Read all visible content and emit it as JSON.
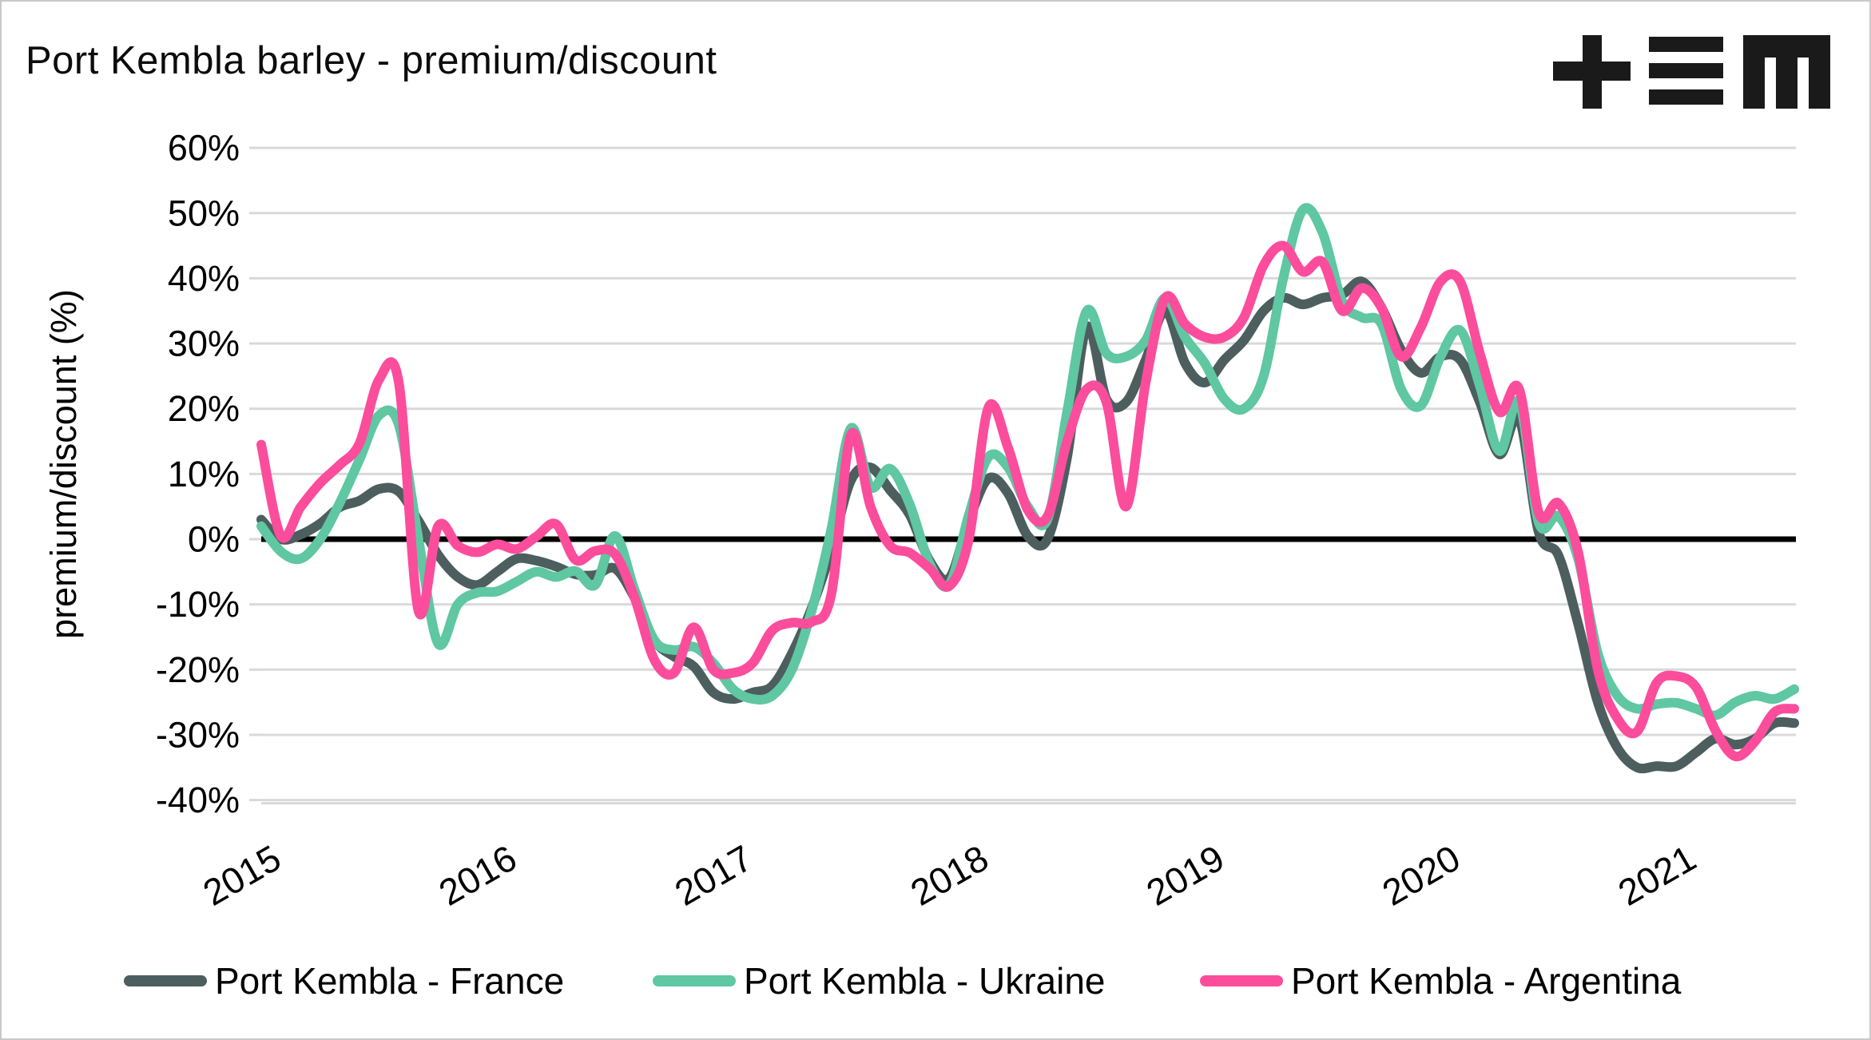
{
  "title": "Port Kembla barley - premium/discount",
  "logo": {
    "name": "tem-logo",
    "color": "#1a1a1a"
  },
  "y_axis": {
    "label": "premium/discount (%)",
    "tick_labels": [
      "60%",
      "50%",
      "40%",
      "30%",
      "20%",
      "10%",
      "0%",
      "-10%",
      "-20%",
      "-30%",
      "-40%"
    ],
    "max": 60,
    "min": -40,
    "step": 10
  },
  "x_axis": {
    "tick_labels": [
      "2015",
      "2016",
      "2017",
      "2018",
      "2019",
      "2020",
      "2021"
    ]
  },
  "legend": [
    {
      "label": "Port Kembla - France",
      "color": "#4d5e5f"
    },
    {
      "label": "Port Kembla - Ukraine",
      "color": "#5fc7a2"
    },
    {
      "label": "Port Kembla - Argentina",
      "color": "#fb4d9c"
    }
  ],
  "style": {
    "gridline_color": "#d9d9d9",
    "zero_line_color": "#000000",
    "background": "#ffffff",
    "line_width": 12,
    "text_color": "#000000"
  },
  "chart_data": {
    "type": "line",
    "title": "Port Kembla barley - premium/discount",
    "xlabel": "",
    "ylabel": "premium/discount (%)",
    "ylim": [
      -40,
      60
    ],
    "grid": true,
    "zero_line": true,
    "legend_position": "bottom",
    "smooth": true,
    "categories": [
      "2015-01",
      "2015-02",
      "2015-03",
      "2015-04",
      "2015-05",
      "2015-06",
      "2015-07",
      "2015-08",
      "2015-09",
      "2015-10",
      "2015-11",
      "2015-12",
      "2016-01",
      "2016-02",
      "2016-03",
      "2016-04",
      "2016-05",
      "2016-06",
      "2016-07",
      "2016-08",
      "2016-09",
      "2016-10",
      "2016-11",
      "2016-12",
      "2017-01",
      "2017-02",
      "2017-03",
      "2017-04",
      "2017-05",
      "2017-06",
      "2017-07",
      "2017-08",
      "2017-09",
      "2017-10",
      "2017-11",
      "2017-12",
      "2018-01",
      "2018-02",
      "2018-03",
      "2018-04",
      "2018-05",
      "2018-06",
      "2018-07",
      "2018-08",
      "2018-09",
      "2018-10",
      "2018-11",
      "2018-12",
      "2019-01",
      "2019-02",
      "2019-03",
      "2019-04",
      "2019-05",
      "2019-06",
      "2019-07",
      "2019-08",
      "2019-09",
      "2019-10",
      "2019-11",
      "2019-12",
      "2020-01",
      "2020-02",
      "2020-03",
      "2020-04",
      "2020-05",
      "2020-06",
      "2020-07",
      "2020-08",
      "2020-09",
      "2020-10",
      "2020-11",
      "2020-12",
      "2021-01",
      "2021-02",
      "2021-03",
      "2021-04",
      "2021-05",
      "2021-06",
      "2021-07"
    ],
    "series": [
      {
        "name": "Port Kembla - France",
        "color": "#4d5e5f",
        "values": [
          3,
          0,
          0.7,
          2.4,
          4.9,
          5.9,
          7.7,
          7.3,
          2.8,
          -2.4,
          -5.8,
          -7,
          -5,
          -3,
          -3.3,
          -4.2,
          -5.4,
          -5.5,
          -4.5,
          -9,
          -15.5,
          -18,
          -19.5,
          -23.5,
          -24.5,
          -23.5,
          -22.5,
          -17.5,
          -10.6,
          -1.7,
          9,
          11,
          7.5,
          3.7,
          -3.3,
          -6,
          2.8,
          9.3,
          7,
          0.5,
          0,
          12.5,
          32.5,
          21.5,
          21,
          27.5,
          35,
          27,
          24,
          27.5,
          30.5,
          35,
          37,
          36,
          37,
          37.5,
          39.5,
          35.5,
          29,
          25.5,
          28,
          27.5,
          21,
          13,
          18.5,
          1,
          -2.5,
          -13,
          -25,
          -32,
          -35,
          -34.8,
          -34.8,
          -32.7,
          -30.6,
          -31.5,
          -30.6,
          -28.2,
          -28.2
        ]
      },
      {
        "name": "Port Kembla - Ukraine",
        "color": "#5fc7a2",
        "values": [
          2,
          -1.9,
          -3,
          0,
          5.6,
          12.2,
          19,
          17.5,
          0,
          -16,
          -10,
          -8.2,
          -8,
          -6.5,
          -5,
          -5.8,
          -4.9,
          -7,
          0.5,
          -7.8,
          -15.5,
          -17,
          -16.5,
          -19,
          -23,
          -24.5,
          -24,
          -20,
          -11,
          1.5,
          17,
          8,
          10.8,
          5.3,
          -3.7,
          -7,
          3.7,
          12.6,
          11,
          5,
          3,
          19.5,
          35,
          28.5,
          28,
          30.5,
          37,
          31,
          27,
          21.5,
          20,
          25,
          40,
          50.5,
          47,
          36.5,
          34,
          33,
          23,
          20.5,
          28,
          32,
          23.5,
          13.5,
          21,
          2.5,
          3.5,
          -3,
          -17.5,
          -24,
          -26,
          -25.3,
          -25.1,
          -26,
          -27,
          -25,
          -24,
          -24.5,
          -23
        ]
      },
      {
        "name": "Port Kembla - Argentina",
        "color": "#fb4d9c",
        "values": [
          14.5,
          0.5,
          4.9,
          8.6,
          11.4,
          14.7,
          24.5,
          24,
          -11,
          2,
          -1,
          -2,
          -0.8,
          -1.5,
          0.4,
          2.3,
          -3.2,
          -1.8,
          -2.3,
          -9,
          -18.5,
          -20.5,
          -13.5,
          -20,
          -20.5,
          -19,
          -14,
          -12.8,
          -12.7,
          -8.5,
          16,
          5,
          -1,
          -2.1,
          -4.5,
          -7.2,
          0,
          20.2,
          14,
          4.5,
          3.5,
          15,
          23,
          21,
          5,
          24,
          37,
          33,
          31,
          31,
          34,
          42,
          45,
          41,
          42.5,
          35,
          38.5,
          35.5,
          28,
          32.5,
          39.5,
          39.5,
          28.5,
          19.5,
          23,
          4,
          5.5,
          -2,
          -20,
          -27.5,
          -29.5,
          -22,
          -21,
          -22.7,
          -29.4,
          -33.3,
          -31,
          -26.5,
          -26
        ]
      }
    ]
  }
}
